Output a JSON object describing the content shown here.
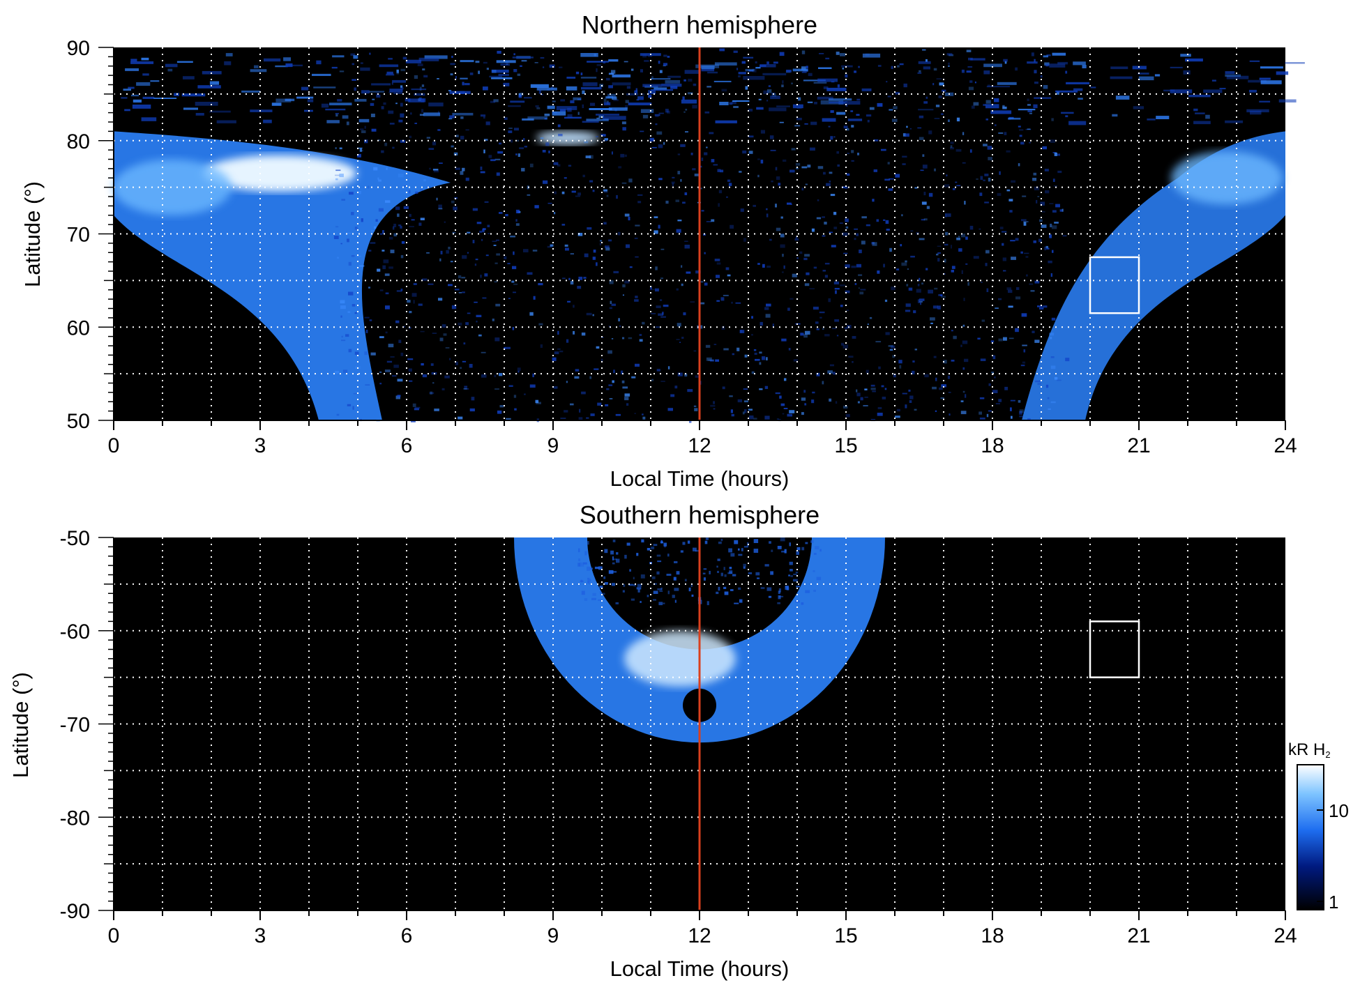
{
  "chart_data": [
    {
      "type": "heatmap",
      "title": "Northern hemisphere",
      "xlabel": "Local Time (hours)",
      "ylabel": "Latitude (°)",
      "xlim": [
        0,
        24
      ],
      "ylim": [
        50,
        90
      ],
      "xticks": [
        0,
        3,
        6,
        9,
        12,
        15,
        18,
        21,
        24
      ],
      "yticks": [
        50,
        60,
        70,
        80,
        90
      ],
      "grid": true,
      "colors": {
        "background": "#000000",
        "colormap": [
          "#000000",
          "#001f9e",
          "#1e6ef0",
          "#7ec4ff",
          "#ffffff"
        ],
        "grid": "#ffffff",
        "marker_line": "#d9401e"
      },
      "vertical_line_x": 12,
      "box": {
        "x": [
          20,
          21
        ],
        "y": [
          61.5,
          67.5
        ]
      },
      "emission_bands": [
        {
          "name": "dawn oval",
          "x": [
            0,
            5.5
          ],
          "y": [
            50,
            81
          ]
        },
        {
          "name": "dusk oval",
          "x": [
            18.5,
            24
          ],
          "y": [
            50,
            81
          ]
        }
      ]
    },
    {
      "type": "heatmap",
      "title": "Southern hemisphere",
      "xlabel": "Local Time (hours)",
      "ylabel": "Latitude (°)",
      "xlim": [
        0,
        24
      ],
      "ylim": [
        -90,
        -50
      ],
      "xticks": [
        0,
        3,
        6,
        9,
        12,
        15,
        18,
        21,
        24
      ],
      "yticks": [
        -90,
        -80,
        -70,
        -60,
        -50
      ],
      "grid": true,
      "colors": {
        "background": "#000000",
        "colormap": [
          "#000000",
          "#001f9e",
          "#1e6ef0",
          "#7ec4ff",
          "#ffffff"
        ],
        "grid": "#ffffff",
        "marker_line": "#d9401e"
      },
      "vertical_line_x": 12,
      "box": {
        "x": [
          20,
          21
        ],
        "y": [
          -65,
          -59
        ]
      },
      "emission_bands": [
        {
          "name": "oval",
          "x": [
            8.2,
            15.8
          ],
          "y": [
            -68,
            -50
          ]
        }
      ]
    }
  ],
  "colorbar": {
    "label": "kR H",
    "label_sub": "2",
    "tick_labels": [
      "1",
      "10"
    ],
    "scale": "log"
  }
}
